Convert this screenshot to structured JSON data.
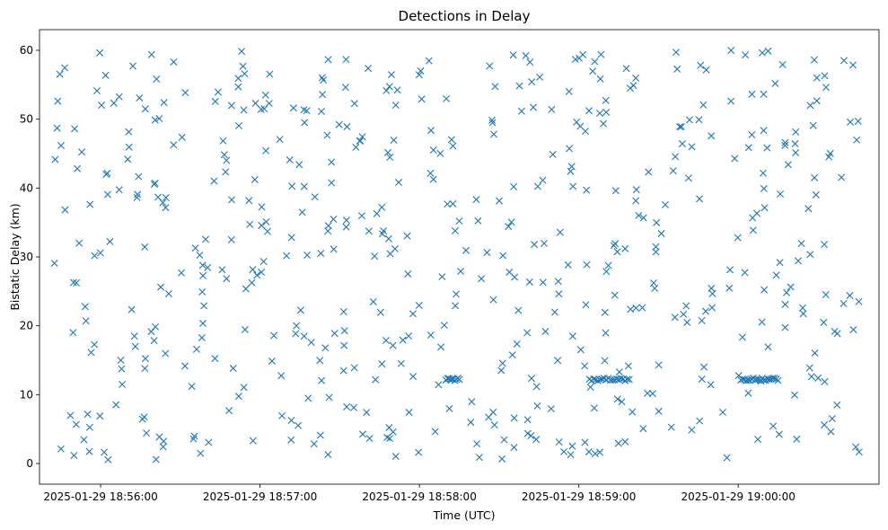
{
  "chart_data": {
    "type": "scatter",
    "title": "Detections in Delay",
    "xlabel": "Time (UTC)",
    "ylabel": "Bistatic Delay (km)",
    "x_time_range": [
      "2025-01-29 18:55:42",
      "2025-01-29 19:00:47"
    ],
    "xlim": [
      "2025-01-29 18:55:37",
      "2025-01-29 19:00:53"
    ],
    "x_ticks": [
      "2025-01-29 18:56:00",
      "2025-01-29 18:57:00",
      "2025-01-29 18:58:00",
      "2025-01-29 18:59:00",
      "2025-01-29 19:00:00"
    ],
    "x_tick_labels": [
      "2025-01-29 18:56:00",
      "2025-01-29 18:57:00",
      "2025-01-29 18:58:00",
      "2025-01-29 18:59:00",
      "2025-01-29 19:00:00"
    ],
    "ylim": [
      -3,
      63
    ],
    "y_ticks": [
      0,
      10,
      20,
      30,
      40,
      50,
      60
    ],
    "y_tick_labels": [
      "0",
      "10",
      "20",
      "30",
      "40",
      "50",
      "60"
    ],
    "marker": "x",
    "marker_color": "#1f77b4",
    "grid": false,
    "series_note": "Approximately 600 detections scattered uniformly between 0 and 60 km, with dense clusters near 12 km around 18:58:12, 18:59:15 and 19:00:10",
    "clusters": [
      {
        "x_start": "2025-01-29 18:58:10",
        "x_end": "2025-01-29 18:58:15",
        "y": 12.2,
        "count": 10
      },
      {
        "x_start": "2025-01-29 18:59:04",
        "x_end": "2025-01-29 18:59:19",
        "y": 12.2,
        "count": 20
      },
      {
        "x_start": "2025-01-29 19:00:01",
        "x_end": "2025-01-29 19:00:15",
        "y": 12.2,
        "count": 22
      }
    ],
    "num_random_points": 560
  }
}
